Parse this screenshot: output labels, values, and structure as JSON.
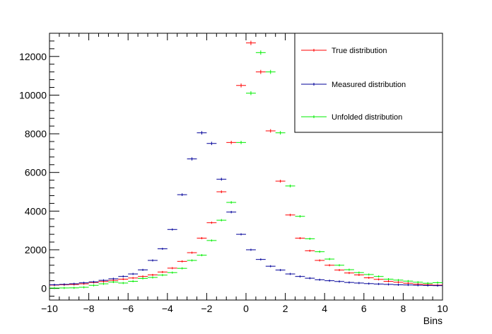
{
  "chart_data": {
    "type": "scatter",
    "title": "",
    "xlabel": "Bins",
    "ylabel": "",
    "xlim": [
      -10,
      10
    ],
    "ylim": [
      -600,
      13200
    ],
    "grid": false,
    "legend_position": "top-right",
    "x_ticks": [
      "−10",
      "−8",
      "−6",
      "−4",
      "−2",
      "0",
      "2",
      "4",
      "6",
      "8",
      "10"
    ],
    "y_ticks": [
      "0",
      "2000",
      "4000",
      "6000",
      "8000",
      "10000",
      "12000"
    ],
    "x": [
      -9.75,
      -9.25,
      -8.75,
      -8.25,
      -7.75,
      -7.25,
      -6.75,
      -6.25,
      -5.75,
      -5.25,
      -4.75,
      -4.25,
      -3.75,
      -3.25,
      -2.75,
      -2.25,
      -1.75,
      -1.25,
      -0.75,
      -0.25,
      0.25,
      0.75,
      1.25,
      1.75,
      2.25,
      2.75,
      3.25,
      3.75,
      4.25,
      4.75,
      5.25,
      5.75,
      6.25,
      6.75,
      7.25,
      7.75,
      8.25,
      8.75,
      9.25,
      9.75
    ],
    "series": [
      {
        "name": "True distribution",
        "color": "#ff0000",
        "values": [
          175,
          190,
          205,
          240,
          310,
          360,
          420,
          480,
          540,
          620,
          700,
          850,
          1050,
          1400,
          1850,
          2600,
          3400,
          5000,
          7550,
          10500,
          12700,
          11200,
          8150,
          5550,
          3800,
          2600,
          1950,
          1450,
          1200,
          950,
          800,
          700,
          550,
          470,
          370,
          320,
          270,
          220,
          200,
          170
        ]
      },
      {
        "name": "Measured distribution",
        "color": "#000099",
        "values": [
          190,
          210,
          240,
          290,
          340,
          420,
          500,
          620,
          750,
          960,
          1450,
          2050,
          3050,
          4850,
          6700,
          8050,
          7500,
          5650,
          3950,
          2800,
          2000,
          1500,
          1150,
          950,
          750,
          620,
          530,
          450,
          400,
          360,
          310,
          280,
          250,
          230,
          210,
          190,
          180,
          165,
          155,
          145
        ]
      },
      {
        "name": "Unfolded distribution",
        "color": "#00ee00",
        "values": [
          20,
          25,
          30,
          60,
          160,
          240,
          330,
          280,
          370,
          520,
          570,
          690,
          820,
          1040,
          1450,
          1720,
          2480,
          3530,
          4450,
          7550,
          10100,
          12200,
          11200,
          8050,
          5300,
          3730,
          2570,
          1900,
          1520,
          1200,
          970,
          820,
          720,
          620,
          480,
          430,
          380,
          320,
          270,
          300
        ]
      }
    ]
  }
}
